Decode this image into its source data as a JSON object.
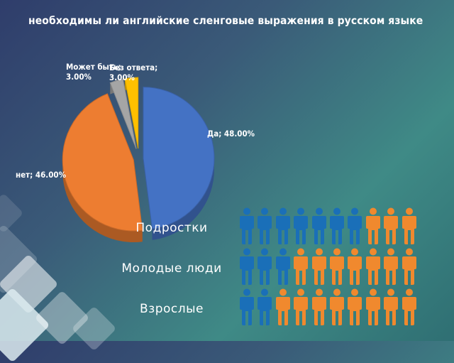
{
  "chart_data": {
    "type": "pie",
    "title": "необходимы ли английские сленговые выражения в русском языке",
    "slices": [
      {
        "label": "Да",
        "value": 48.0,
        "display": "Да; 48.00%",
        "color": "#4472c4"
      },
      {
        "label": "нет",
        "value": 46.0,
        "display": "нет; 46.00%",
        "color": "#ed7d31"
      },
      {
        "label": "Может быть",
        "value": 3.0,
        "display": "Может быть; 3.00%",
        "color": "#a5a5a5"
      },
      {
        "label": "Без ответа",
        "value": 3.0,
        "display": "Без ответа; 3.00%",
        "color": "#ffc000"
      }
    ]
  },
  "groups": {
    "colors": {
      "blue": "#1a6fb8",
      "orange": "#f0892e"
    },
    "rows": [
      {
        "label": "Подростки",
        "blue": 7,
        "orange": 3
      },
      {
        "label": "Молодые люди",
        "blue": 3,
        "orange": 7
      },
      {
        "label": "Взрослые",
        "blue": 2,
        "orange": 8
      }
    ]
  }
}
